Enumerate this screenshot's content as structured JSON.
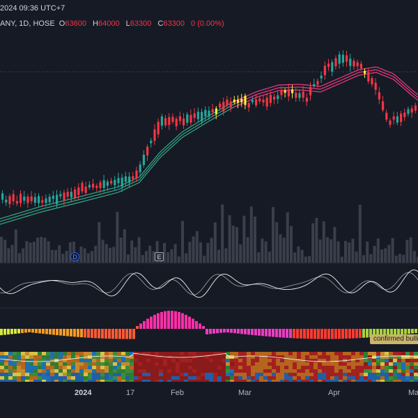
{
  "header": {
    "datetime": "2024 09:36 UTC+7",
    "symbol_info": "ANY, 1D, HOSE",
    "ohlc": {
      "o": "63600",
      "h": "64000",
      "l": "63300",
      "c": "63300",
      "change": "0 (0.00%)"
    }
  },
  "markers": {
    "dividend": "D",
    "earnings": "E"
  },
  "badge": {
    "label": "confirmed bulli"
  },
  "xaxis": {
    "labels": [
      "2024",
      "17",
      "Feb",
      "Mar",
      "Apr",
      "Ma"
    ]
  },
  "colors": {
    "background": "#161a25",
    "bull": "#26a69a",
    "bear": "#f23645",
    "ribbon_green": "#36b38f",
    "ribbon_pink": "#ff3d8a",
    "volume": "#3a3f4b",
    "osc_line": "#ffffff",
    "highlight": "#ffeb3b"
  },
  "icons": {
    "dividend_marker": "circle-letter-D-icon",
    "earnings_marker": "square-letter-E-icon"
  }
}
